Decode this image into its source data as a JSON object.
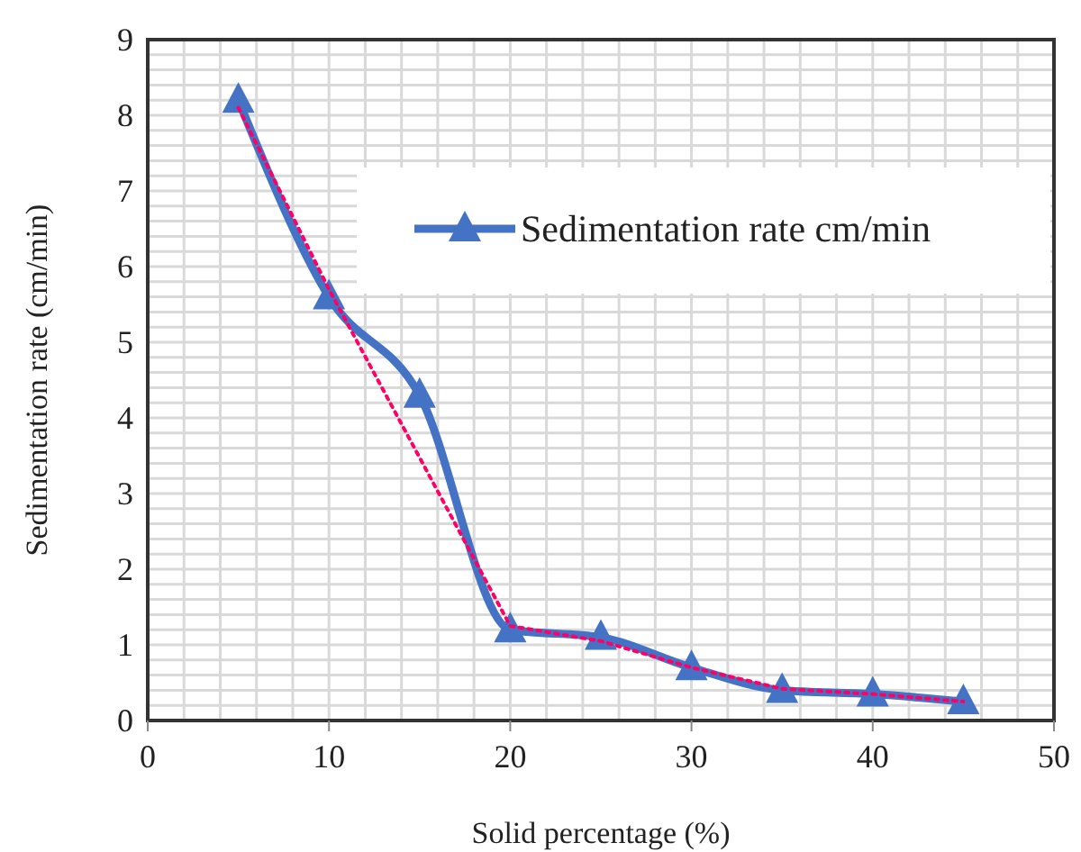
{
  "chart_data": {
    "type": "line",
    "xlabel": "Solid percentage (%)",
    "ylabel": "Sedimentation rate (cm/min)",
    "x": [
      5,
      10,
      15,
      20,
      25,
      30,
      35,
      40,
      45
    ],
    "series": [
      {
        "name": "Sedimentation rate cm/min",
        "color": "#4472c4",
        "values": [
          8.2,
          5.6,
          4.3,
          1.2,
          1.1,
          0.7,
          0.4,
          0.35,
          0.25
        ],
        "marker": "triangle",
        "line_style": "solid"
      },
      {
        "color": "#ff0066",
        "x": [
          5,
          10,
          20,
          25,
          30,
          35,
          40,
          45
        ],
        "values": [
          8.1,
          5.7,
          1.25,
          1.05,
          0.7,
          0.42,
          0.35,
          0.25
        ],
        "marker": "none",
        "line_style": "dotted"
      }
    ],
    "xlim": [
      0,
      50
    ],
    "xticks": [
      0,
      {
        "value": 2,
        "label": null
      },
      {
        "value": 4,
        "label": null
      },
      {
        "value": 6,
        "label": null
      },
      {
        "value": 8,
        "label": null
      },
      10,
      {
        "value": 12,
        "label": null
      },
      {
        "value": 14,
        "label": null
      },
      {
        "value": 16,
        "label": null
      },
      {
        "value": 18,
        "label": null
      },
      20,
      {
        "value": 22,
        "label": null
      },
      {
        "value": 24,
        "label": null
      },
      {
        "value": 26,
        "label": null
      },
      {
        "value": 28,
        "label": null
      },
      30,
      {
        "value": 32,
        "label": null
      },
      {
        "value": 34,
        "label": null
      },
      {
        "value": 36,
        "label": null
      },
      {
        "value": 38,
        "label": null
      },
      40,
      {
        "value": 42,
        "label": null
      },
      {
        "value": 44,
        "label": null
      },
      {
        "value": 46,
        "label": null
      },
      {
        "value": 48,
        "label": null
      },
      50
    ],
    "ylim": [
      0,
      9
    ],
    "yticks": [
      0,
      {
        "value": 0.2,
        "label": null
      },
      {
        "value": 0.4,
        "label": null
      },
      {
        "value": 0.6,
        "label": null
      },
      {
        "value": 0.8,
        "label": null
      },
      1,
      {
        "value": 1.2,
        "label": null
      },
      {
        "value": 1.4,
        "label": null
      },
      {
        "value": 1.6,
        "label": null
      },
      {
        "value": 1.8,
        "label": null
      },
      2,
      {
        "value": 2.2,
        "label": null
      },
      {
        "value": 2.4,
        "label": null
      },
      {
        "value": 2.6,
        "label": null
      },
      {
        "value": 2.8,
        "label": null
      },
      3,
      {
        "value": 3.2,
        "label": null
      },
      {
        "value": 3.4,
        "label": null
      },
      {
        "value": 3.6,
        "label": null
      },
      {
        "value": 3.8,
        "label": null
      },
      4,
      {
        "value": 4.2,
        "label": null
      },
      {
        "value": 4.4,
        "label": null
      },
      {
        "value": 4.6,
        "label": null
      },
      {
        "value": 4.8,
        "label": null
      },
      5,
      {
        "value": 5.2,
        "label": null
      },
      {
        "value": 5.4,
        "label": null
      },
      {
        "value": 5.6,
        "label": null
      },
      {
        "value": 5.8,
        "label": null
      },
      6,
      {
        "value": 6.2,
        "label": null
      },
      {
        "value": 6.4,
        "label": null
      },
      {
        "value": 6.6,
        "label": null
      },
      {
        "value": 6.8,
        "label": null
      },
      7,
      {
        "value": 7.2,
        "label": null
      },
      {
        "value": 7.4,
        "label": null
      },
      {
        "value": 7.6,
        "label": null
      },
      {
        "value": 7.8,
        "label": null
      },
      8,
      {
        "value": 8.2,
        "label": null
      },
      {
        "value": 8.4,
        "label": null
      },
      {
        "value": 8.6,
        "label": null
      },
      {
        "value": 8.8,
        "label": null
      },
      9
    ],
    "grid": true,
    "legend": "top right"
  }
}
